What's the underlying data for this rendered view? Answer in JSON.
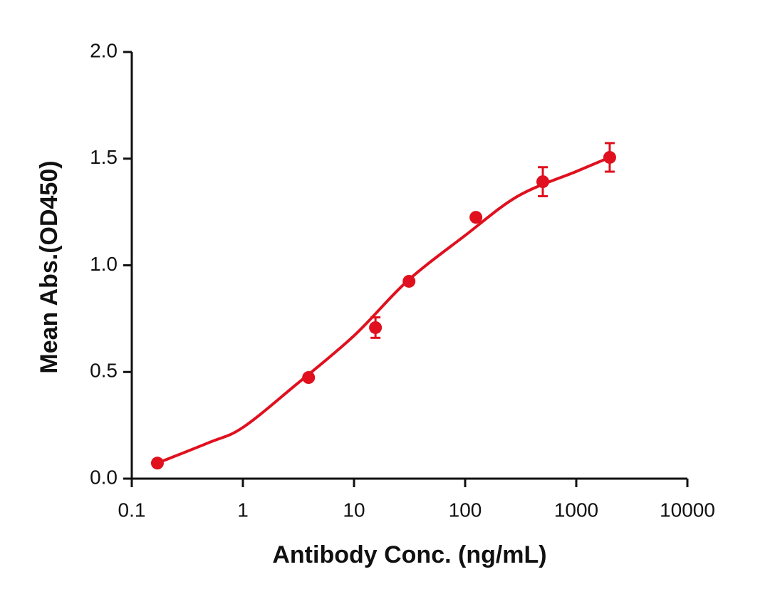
{
  "chart_data": {
    "type": "scatter",
    "x_label": "Antibody Conc. (ng/mL)",
    "y_label": "Mean Abs.(OD450)",
    "x_scale": "log",
    "xlim": [
      0.1,
      10000
    ],
    "xticks": [
      0.1,
      1,
      10,
      100,
      1000,
      10000
    ],
    "ylim": [
      0,
      2
    ],
    "yticks": [
      {
        "value": 0,
        "label": "0.0"
      },
      0.5,
      {
        "value": 1,
        "label": "1.0"
      },
      1.5,
      {
        "value": 2,
        "label": "2.0"
      }
    ],
    "series": [
      {
        "color": "#e0101e",
        "x": [
          0.17,
          3.9,
          15.6,
          31.25,
          125,
          500,
          2000
        ],
        "values": [
          0.073,
          0.474,
          0.708,
          0.925,
          1.225,
          1.392,
          1.506
        ],
        "errors": [
          0,
          0,
          0.048,
          0,
          0,
          0.068,
          0.067
        ]
      }
    ],
    "fit": {
      "color": "#e0101e",
      "x": [
        0.17,
        0.5,
        1,
        3,
        10,
        30,
        100,
        300,
        1000,
        2000
      ],
      "values": [
        0.073,
        0.17,
        0.24,
        0.44,
        0.67,
        0.925,
        1.14,
        1.325,
        1.44,
        1.506
      ]
    }
  }
}
